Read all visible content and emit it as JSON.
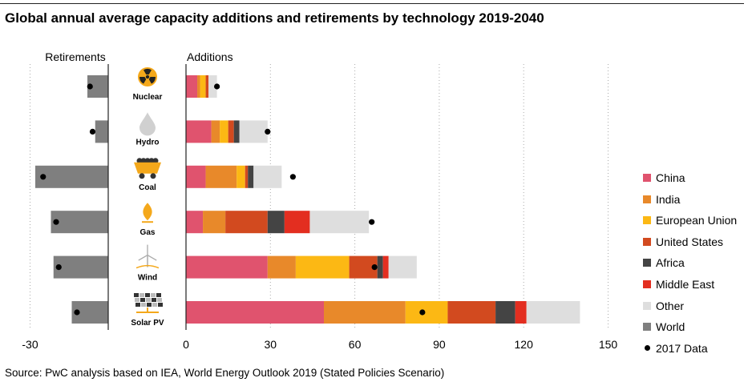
{
  "title": "Global annual average capacity additions and retirements by technology 2019-2040",
  "source": "Source: PwC analysis based on IEA, World Energy Outlook 2019 (Stated Policies Scenario)",
  "chart_data": {
    "type": "bar",
    "orientation": "horizontal-stacked",
    "panels": {
      "retirements": "Retirements",
      "additions": "Additions"
    },
    "categories": [
      "Nuclear",
      "Hydro",
      "Coal",
      "Gas",
      "Wind",
      "Solar PV"
    ],
    "icons": [
      "radiation-icon",
      "water-drop-icon",
      "coal-cart-icon",
      "gas-flame-icon",
      "wind-turbine-icon",
      "solar-panel-icon"
    ],
    "x_ticks": [
      -30,
      0,
      30,
      60,
      90,
      120,
      150
    ],
    "retirements_xlim": [
      -30,
      0
    ],
    "additions_xlim": [
      0,
      150
    ],
    "series": [
      {
        "name": "China",
        "color": "#e0536e",
        "values": [
          4,
          9,
          7,
          6,
          29,
          49
        ]
      },
      {
        "name": "India",
        "color": "#e8892a",
        "values": [
          1,
          3,
          11,
          8,
          10,
          29
        ]
      },
      {
        "name": "European Union",
        "color": "#fcb814",
        "values": [
          2,
          3,
          3,
          0,
          19,
          15
        ]
      },
      {
        "name": "United States",
        "color": "#d24a1f",
        "values": [
          1,
          2,
          1,
          15,
          10,
          17
        ]
      },
      {
        "name": "Africa",
        "color": "#444444",
        "values": [
          0,
          2,
          2,
          6,
          2,
          7
        ]
      },
      {
        "name": "Middle East",
        "color": "#e32e20",
        "values": [
          0,
          0,
          0,
          9,
          2,
          4
        ]
      },
      {
        "name": "Other",
        "color": "#dedede",
        "values": [
          3,
          10,
          10,
          21,
          10,
          19
        ]
      }
    ],
    "retirements": {
      "name": "World",
      "color": "#7f7f7f",
      "values": [
        -8,
        -5,
        -28,
        -22,
        -21,
        -14
      ]
    },
    "data_2017": {
      "name": "2017 Data",
      "retirements": [
        -7,
        -6,
        -25,
        -20,
        -19,
        -12
      ],
      "additions": [
        11,
        29,
        38,
        66,
        67,
        84
      ]
    },
    "legend_position": "right",
    "grid": "dotted vertical gridlines"
  }
}
